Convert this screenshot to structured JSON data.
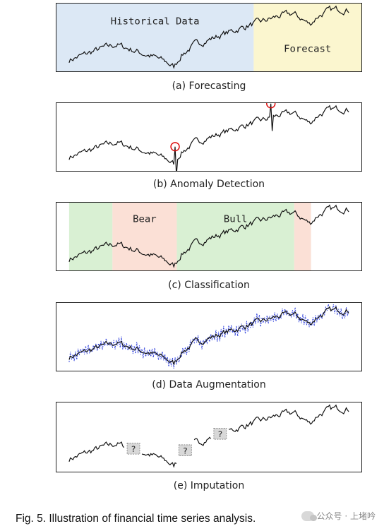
{
  "panels": [
    {
      "id": "a",
      "caption": "(a) Forecasting",
      "regions": [
        {
          "label": "Historical Data",
          "start": 0.0,
          "end": 0.66,
          "color": "#dce8f5"
        },
        {
          "label": "Forecast",
          "start": 0.66,
          "end": 1.0,
          "color": "#fbf6cf"
        }
      ]
    },
    {
      "id": "b",
      "caption": "(b) Anomaly Detection",
      "anomalies": [
        0.38,
        0.72
      ]
    },
    {
      "id": "c",
      "caption": "(c) Classification",
      "regions": [
        {
          "label": "",
          "start": 0.0,
          "end": 0.155,
          "color": "#d9f0d3"
        },
        {
          "label": "Bear",
          "start": 0.155,
          "end": 0.385,
          "color": "#fbe0d6"
        },
        {
          "label": "Bull",
          "start": 0.385,
          "end": 0.805,
          "color": "#d9f0d3"
        },
        {
          "label": "",
          "start": 0.805,
          "end": 0.865,
          "color": "#fbe0d6"
        }
      ]
    },
    {
      "id": "d",
      "caption": "(d) Data Augmentation"
    },
    {
      "id": "e",
      "caption": "(e) Imputation",
      "missing": [
        {
          "label": "?",
          "at": 0.23
        },
        {
          "label": "?",
          "at": 0.415
        },
        {
          "label": "?",
          "at": 0.54
        }
      ]
    }
  ],
  "figure_caption": "Fig. 5. Illustration of financial time series analysis.",
  "watermark": "公众号 · 上堵吟",
  "colors": {
    "line": "#111111",
    "augment": "#3344dd",
    "anomaly": "#dd1111"
  }
}
